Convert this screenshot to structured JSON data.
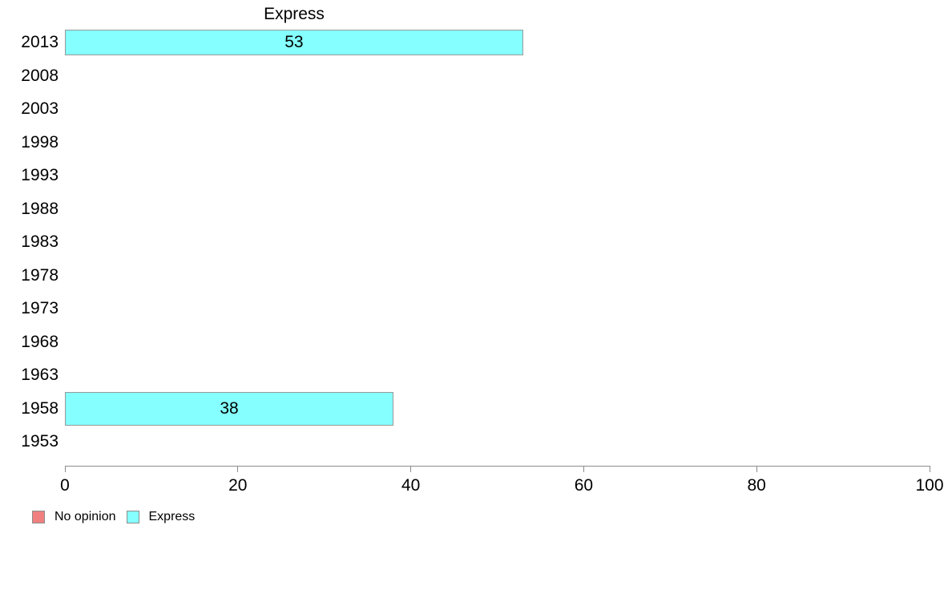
{
  "chart_data": {
    "type": "bar",
    "orientation": "horizontal",
    "title": "Express",
    "categories": [
      "2013",
      "2008",
      "2003",
      "1998",
      "1993",
      "1988",
      "1983",
      "1978",
      "1973",
      "1968",
      "1963",
      "1958",
      "1953"
    ],
    "series": [
      {
        "name": "No opinion",
        "color": "#F08080",
        "values": [
          null,
          null,
          null,
          null,
          null,
          null,
          null,
          null,
          null,
          null,
          null,
          null,
          null
        ]
      },
      {
        "name": "Express",
        "color": "#85FFFF",
        "values": [
          53,
          null,
          null,
          null,
          null,
          null,
          null,
          null,
          null,
          null,
          null,
          38,
          null
        ]
      }
    ],
    "value_labels_shown": true,
    "xlabel": "",
    "ylabel": "",
    "xlim": [
      0,
      100
    ],
    "xticks": [
      0,
      20,
      40,
      60,
      80,
      100
    ],
    "grid": false,
    "legend": {
      "position": "bottom-left",
      "entries": [
        {
          "label": "No opinion",
          "color": "#F08080"
        },
        {
          "label": "Express",
          "color": "#85FFFF"
        }
      ]
    },
    "colors": {
      "bar_border": "#999999",
      "axis": "#8C8C8C",
      "text": "#000000",
      "background": "#FFFFFF"
    }
  }
}
